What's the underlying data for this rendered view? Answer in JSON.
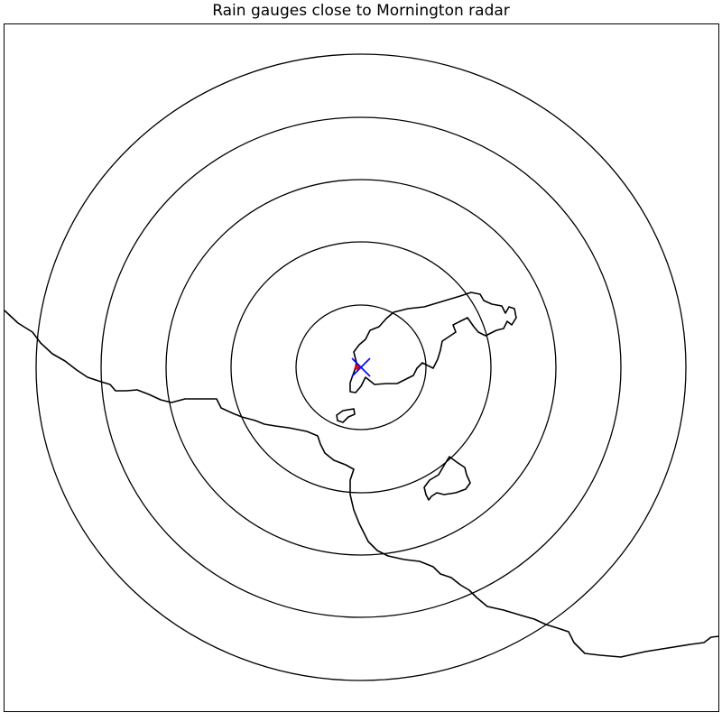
{
  "title": "Rain gauges close to Mornington radar",
  "colors": {
    "range_rings": "#000000",
    "coastline": "#000000",
    "radar_marker": "#0000ff",
    "gauge_marker": "#ff0000",
    "frame": "#000000",
    "background": "#ffffff"
  },
  "map": {
    "radar_marker_icon": "x-cross-icon",
    "gauge_marker_icon": "dot-icon",
    "range_ring_count": 5
  }
}
